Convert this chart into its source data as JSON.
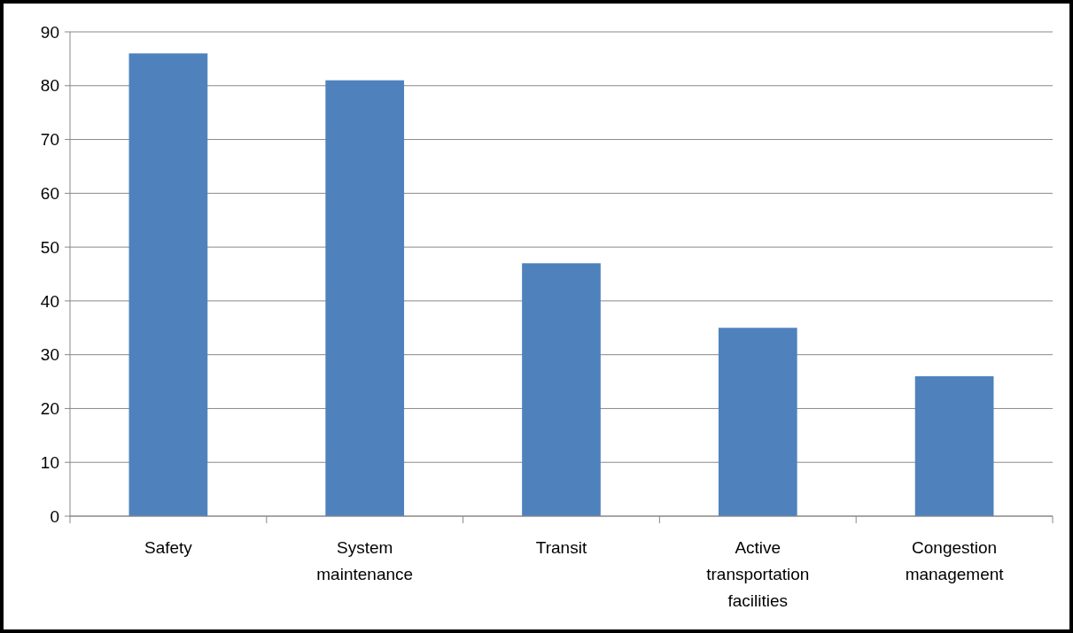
{
  "chart_data": {
    "type": "bar",
    "categories": [
      "Safety",
      "System maintenance",
      "Transit",
      "Active transportation facilities",
      "Congestion management"
    ],
    "values": [
      86,
      81,
      47,
      35,
      26
    ],
    "color": "#4f81bd",
    "ylim": [
      0,
      90
    ],
    "yticks": [
      0,
      10,
      20,
      30,
      40,
      50,
      60,
      70,
      80,
      90
    ],
    "grid": "y"
  }
}
